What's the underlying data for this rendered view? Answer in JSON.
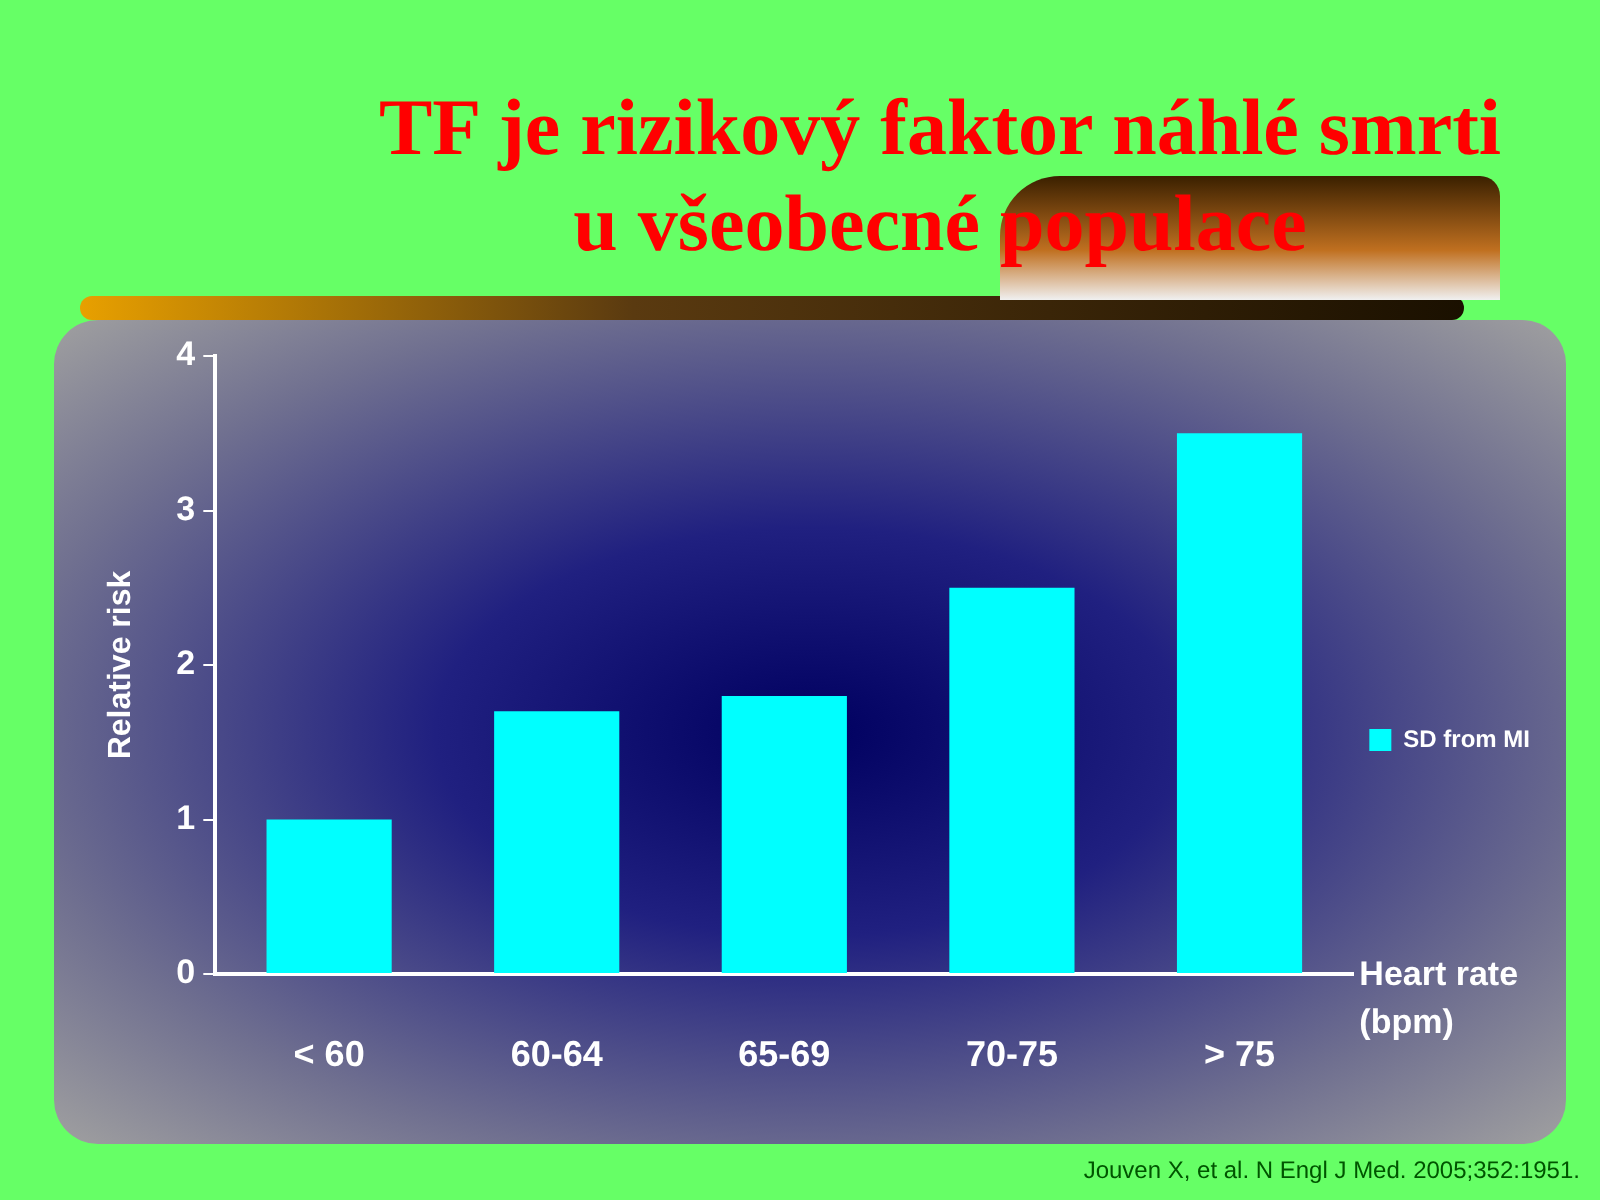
{
  "chart_data": {
    "type": "bar",
    "title": "TF je rizikový faktor náhlé smrti u všeobecné populace",
    "xlabel": "Heart rate (bpm)",
    "ylabel": "Relative risk",
    "categories": [
      "< 60",
      "60-64",
      "65-69",
      "70-75",
      "> 75"
    ],
    "series": [
      {
        "name": "SD from MI",
        "color": "#00ffff",
        "values": [
          1.0,
          1.7,
          1.8,
          2.5,
          3.5
        ]
      }
    ],
    "ylim": [
      0,
      4
    ],
    "yticks": [
      0,
      1,
      2,
      3,
      4
    ],
    "grid": false,
    "legend": "right",
    "annotations": [
      "Jouven X, et al. N Engl J Med. 2005;352:1951."
    ]
  }
}
